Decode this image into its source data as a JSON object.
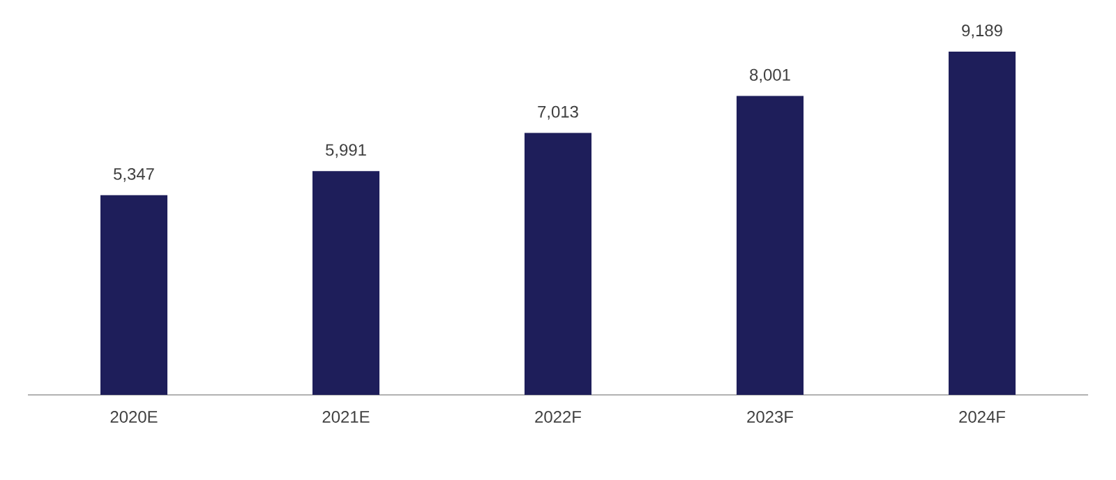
{
  "chart_data": {
    "type": "bar",
    "categories": [
      "2020E",
      "2021E",
      "2022F",
      "2023F",
      "2024F"
    ],
    "values": [
      5347,
      5991,
      7013,
      8001,
      9189
    ],
    "value_labels": [
      "5,347",
      "5,991",
      "7,013",
      "8,001",
      "9,189"
    ],
    "color": "#1e1e5a"
  }
}
